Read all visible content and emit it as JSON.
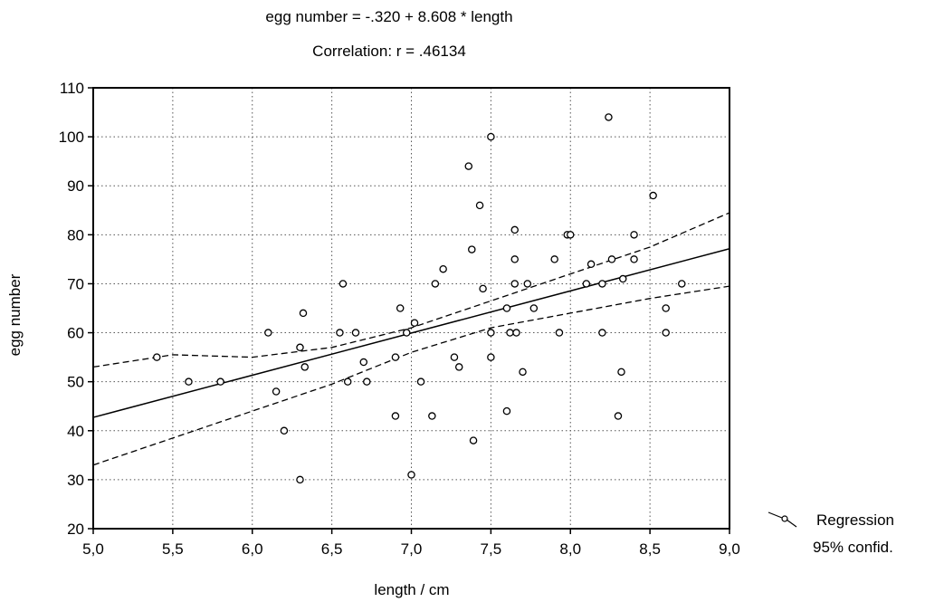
{
  "chart_data": {
    "type": "scatter",
    "title": "egg number = -.320 + 8.608 * length",
    "subtitle": "Correlation: r = .46134",
    "xlabel": "length / cm",
    "ylabel": "egg number",
    "xlim": [
      5.0,
      9.0
    ],
    "ylim": [
      20,
      110
    ],
    "x_ticks": [
      "5,0",
      "5,5",
      "6,0",
      "6,5",
      "7,0",
      "7,5",
      "8,0",
      "8,5",
      "9,0"
    ],
    "y_ticks": [
      "20",
      "30",
      "40",
      "50",
      "60",
      "70",
      "80",
      "90",
      "100",
      "110"
    ],
    "grid": true,
    "legend": {
      "placement": "right",
      "entries": [
        "Regression",
        "95% confid."
      ]
    },
    "regression": {
      "intercept": -0.32,
      "slope": 8.608
    },
    "confidence_band": {
      "x": [
        5.0,
        5.5,
        6.0,
        6.5,
        7.0,
        7.5,
        8.0,
        8.5,
        9.0
      ],
      "upper": [
        53,
        55.5,
        55,
        57,
        61,
        66.5,
        72,
        77.5,
        84.5
      ],
      "lower": [
        33,
        38.5,
        44,
        49.5,
        56,
        61,
        64,
        67,
        69.5
      ]
    },
    "points": [
      [
        5.4,
        55
      ],
      [
        5.6,
        50
      ],
      [
        5.8,
        50
      ],
      [
        6.1,
        60
      ],
      [
        6.15,
        48
      ],
      [
        6.2,
        40
      ],
      [
        6.3,
        57
      ],
      [
        6.32,
        64
      ],
      [
        6.33,
        53
      ],
      [
        6.3,
        30
      ],
      [
        6.55,
        60
      ],
      [
        6.57,
        70
      ],
      [
        6.6,
        50
      ],
      [
        6.65,
        60
      ],
      [
        6.7,
        54
      ],
      [
        6.72,
        50
      ],
      [
        6.9,
        55
      ],
      [
        6.9,
        43
      ],
      [
        6.93,
        65
      ],
      [
        6.97,
        60
      ],
      [
        7.0,
        31
      ],
      [
        7.02,
        62
      ],
      [
        7.06,
        50
      ],
      [
        7.13,
        43
      ],
      [
        7.15,
        70
      ],
      [
        7.2,
        73
      ],
      [
        7.27,
        55
      ],
      [
        7.3,
        53
      ],
      [
        7.36,
        94
      ],
      [
        7.38,
        77
      ],
      [
        7.39,
        38
      ],
      [
        7.43,
        86
      ],
      [
        7.45,
        69
      ],
      [
        7.5,
        100
      ],
      [
        7.5,
        60
      ],
      [
        7.5,
        55
      ],
      [
        7.6,
        65
      ],
      [
        7.6,
        44
      ],
      [
        7.62,
        60
      ],
      [
        7.65,
        81
      ],
      [
        7.65,
        75
      ],
      [
        7.65,
        70
      ],
      [
        7.66,
        60
      ],
      [
        7.7,
        52
      ],
      [
        7.73,
        70
      ],
      [
        7.77,
        65
      ],
      [
        7.9,
        75
      ],
      [
        7.93,
        60
      ],
      [
        7.98,
        80
      ],
      [
        8.0,
        80
      ],
      [
        8.1,
        70
      ],
      [
        8.13,
        74
      ],
      [
        8.2,
        70
      ],
      [
        8.2,
        60
      ],
      [
        8.24,
        104
      ],
      [
        8.26,
        75
      ],
      [
        8.3,
        43
      ],
      [
        8.32,
        52
      ],
      [
        8.33,
        71
      ],
      [
        8.4,
        80
      ],
      [
        8.4,
        75
      ],
      [
        8.52,
        88
      ],
      [
        8.6,
        65
      ],
      [
        8.6,
        60
      ],
      [
        8.7,
        70
      ]
    ]
  }
}
